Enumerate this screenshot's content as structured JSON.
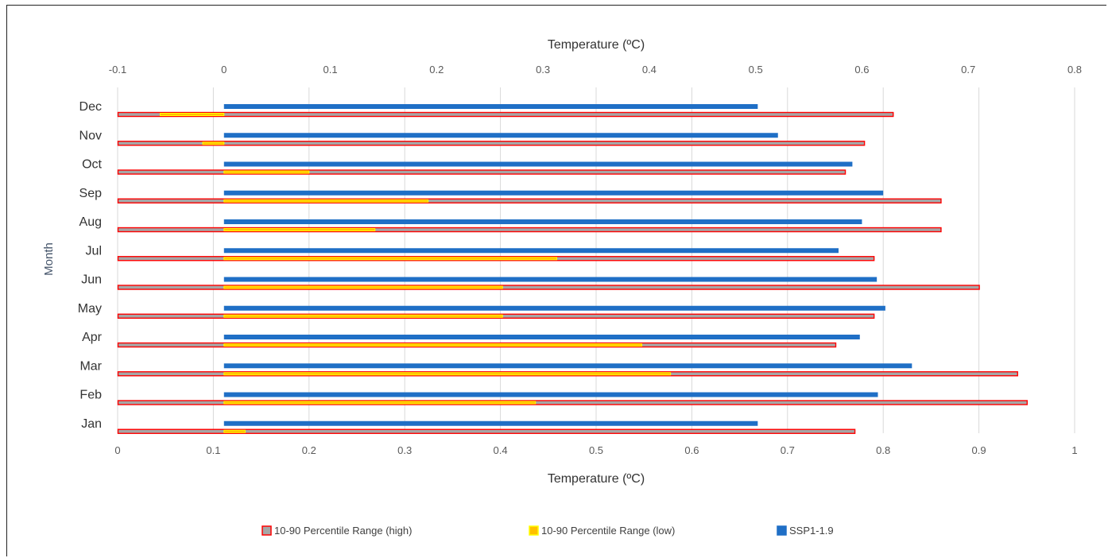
{
  "chart_data": {
    "type": "bar",
    "orientation": "horizontal",
    "categories": [
      "Jan",
      "Feb",
      "Mar",
      "Apr",
      "May",
      "Jun",
      "Jul",
      "Aug",
      "Sep",
      "Oct",
      "Nov",
      "Dec"
    ],
    "ylabel": "Month",
    "primary_axis": {
      "title": "Temperature (ºC)",
      "position": "bottom",
      "range": [
        0,
        1
      ],
      "ticks": [
        "0",
        "0.1",
        "0.2",
        "0.3",
        "0.4",
        "0.5",
        "0.6",
        "0.7",
        "0.8",
        "0.9",
        "1"
      ]
    },
    "secondary_axis": {
      "title": "Temperature (ºC)",
      "position": "top",
      "range": [
        -0.1,
        0.8
      ],
      "ticks": [
        "-0.1",
        "0",
        "0.1",
        "0.2",
        "0.3",
        "0.4",
        "0.5",
        "0.6",
        "0.7",
        "0.8"
      ]
    },
    "grid": true,
    "legend_position": "bottom",
    "series": [
      {
        "name": "10-90 Percentile Range (high)",
        "axis": "primary",
        "start": 0,
        "color": "#a6a6a6",
        "border": "#ff0000",
        "values": [
          0.77,
          0.95,
          0.94,
          0.75,
          0.79,
          0.9,
          0.79,
          0.86,
          0.86,
          0.76,
          0.78,
          0.81
        ]
      },
      {
        "name": "10-90 Percentile Range (low)",
        "axis": "secondary",
        "start": 0,
        "color": "#ffc000",
        "border": "#ffff00",
        "values": [
          0.02,
          0.293,
          0.42,
          0.393,
          0.262,
          0.262,
          0.313,
          0.142,
          0.192,
          0.08,
          -0.02,
          -0.06
        ]
      },
      {
        "name": "SSP1-1.9",
        "axis": "secondary",
        "start": 0,
        "color": "#1f6fc6",
        "values": [
          0.502,
          0.615,
          0.647,
          0.598,
          0.622,
          0.614,
          0.578,
          0.6,
          0.62,
          0.591,
          0.521,
          0.502
        ]
      }
    ]
  }
}
